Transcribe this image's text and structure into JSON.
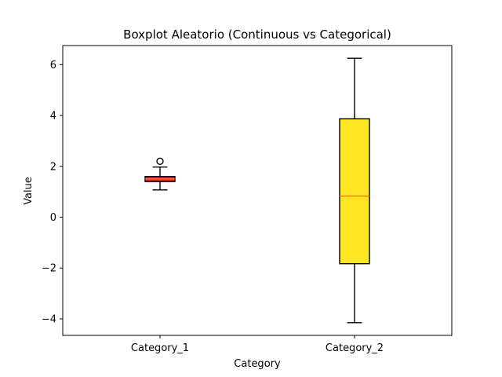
{
  "chart_data": {
    "type": "box",
    "title": "Boxplot Aleatorio (Continuous vs Categorical)",
    "xlabel": "Category",
    "ylabel": "Value",
    "ylim": [
      -4.65,
      6.75
    ],
    "yticks": [
      -4,
      -2,
      0,
      2,
      4,
      6
    ],
    "ytick_labels": [
      "−4",
      "−2",
      "0",
      "2",
      "4",
      "6"
    ],
    "grid": false,
    "categories": [
      "Category_1",
      "Category_2"
    ],
    "boxes": [
      {
        "category": "Category_1",
        "whisker_low": 1.07,
        "q1": 1.4,
        "median": 1.5,
        "q3": 1.6,
        "whisker_high": 1.97,
        "outliers": [
          2.2
        ],
        "fill": "#e8173c",
        "median_color": "#ff7f0e"
      },
      {
        "category": "Category_2",
        "whisker_low": -4.15,
        "q1": -1.83,
        "median": 0.83,
        "q3": 3.87,
        "whisker_high": 6.25,
        "outliers": [],
        "fill": "#ffe622",
        "median_color": "#ff7f0e"
      }
    ]
  }
}
